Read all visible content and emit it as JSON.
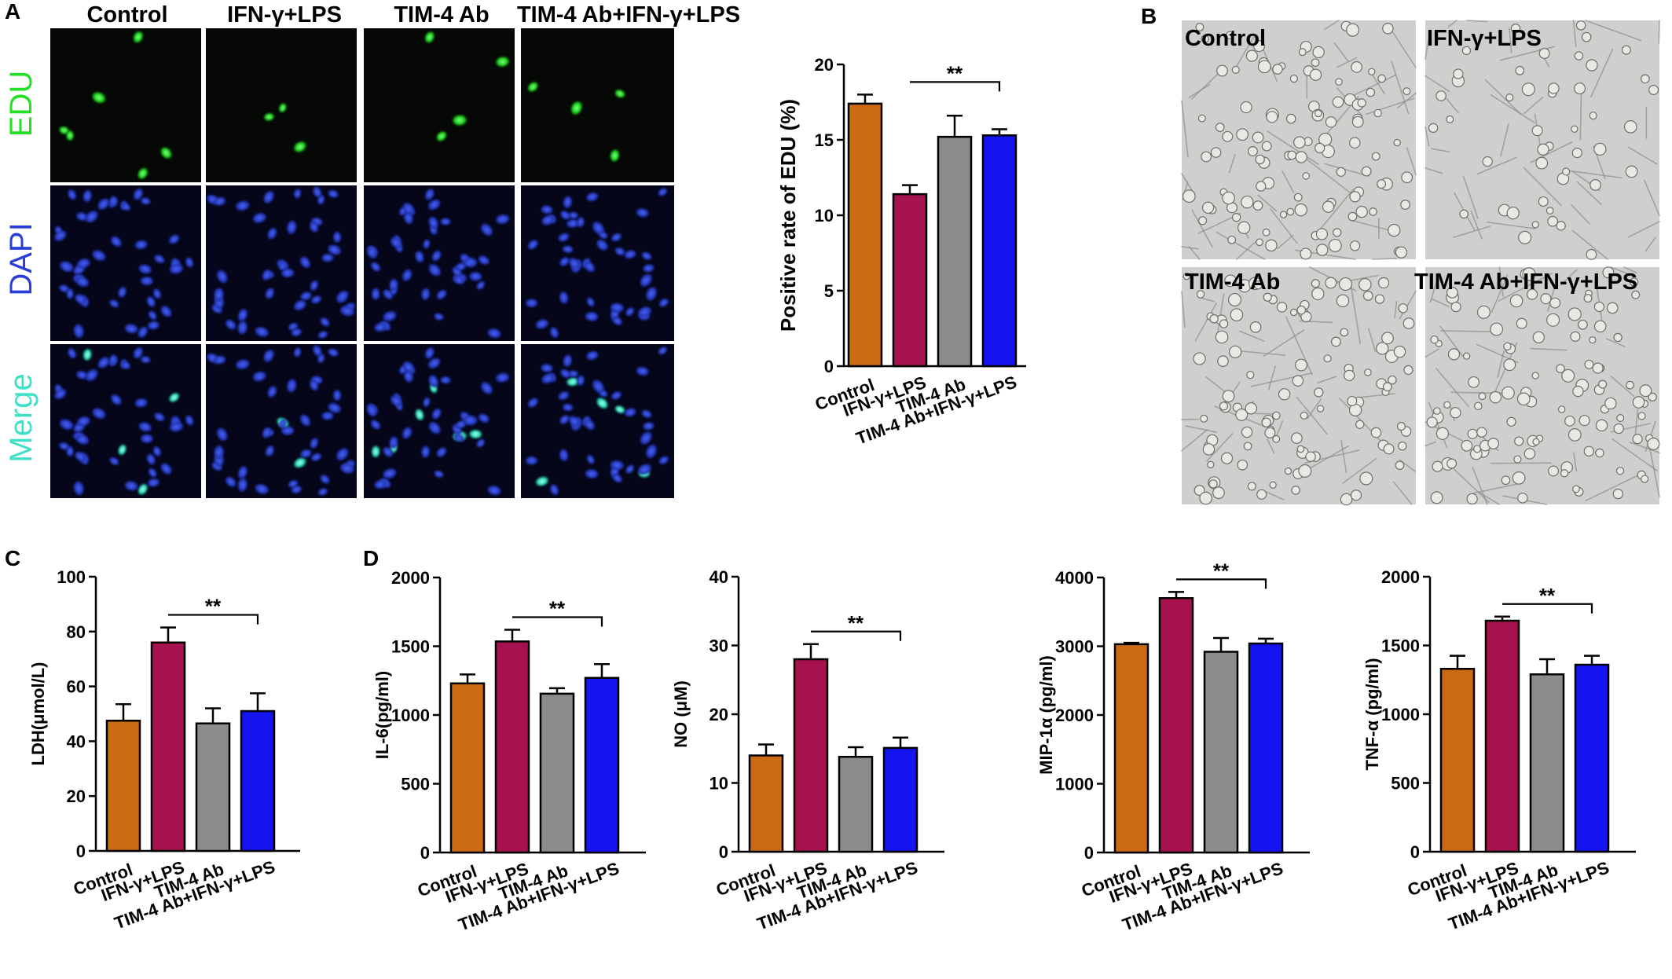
{
  "panels": {
    "a": "A",
    "b": "B",
    "c": "C",
    "d": "D"
  },
  "microscopy": {
    "columns": [
      "Control",
      "IFN-γ+LPS",
      "TIM-4 Ab",
      "TIM-4 Ab+IFN-γ+LPS"
    ],
    "rows": [
      {
        "label": "EDU",
        "color": "#22e022"
      },
      {
        "label": "DAPI",
        "color": "#2a3fd8"
      },
      {
        "label": "Merge",
        "color": "#3fe0c8"
      }
    ]
  },
  "brightfield": {
    "labels": [
      "Control",
      "IFN-γ+LPS",
      "TIM-4 Ab",
      "TIM-4 Ab+IFN-γ+LPS"
    ]
  },
  "colors": {
    "series": [
      "#cc6a14",
      "#a5124e",
      "#8c8c8c",
      "#1414f0"
    ],
    "edu_green": "#22e022",
    "dapi_blue": "#2a3fd8"
  },
  "chart_data": [
    {
      "id": "edu",
      "type": "bar",
      "categories": [
        "Control",
        "IFN-γ+LPS",
        "TIM-4 Ab",
        "TIM-4 Ab+IFN-γ+LPS"
      ],
      "values": [
        17.4,
        11.4,
        15.2,
        15.3
      ],
      "errors": [
        0.6,
        0.6,
        1.4,
        0.4
      ],
      "ylabel": "Positive rate of EDU (%)",
      "ylim": [
        0,
        20
      ],
      "yticks": [
        0,
        5,
        10,
        15,
        20
      ],
      "significance": {
        "from": 1,
        "to": 3,
        "label": "**"
      }
    },
    {
      "id": "ldh",
      "type": "bar",
      "categories": [
        "Control",
        "IFN-γ+LPS",
        "TIM-4 Ab",
        "TIM-4 Ab+IFN-γ+LPS"
      ],
      "values": [
        47.5,
        76,
        46.5,
        51
      ],
      "errors": [
        6,
        5.5,
        5.5,
        6.5
      ],
      "ylabel": "LDH(μmol/L)",
      "ylim": [
        0,
        100
      ],
      "yticks": [
        0,
        20,
        40,
        60,
        80,
        100
      ],
      "significance": {
        "from": 1,
        "to": 3,
        "label": "**"
      }
    },
    {
      "id": "il6",
      "type": "bar",
      "categories": [
        "Control",
        "IFN-γ+LPS",
        "TIM-4 Ab",
        "TIM-4 Ab+IFN-γ+LPS"
      ],
      "values": [
        1230,
        1535,
        1155,
        1270
      ],
      "errors": [
        65,
        85,
        40,
        100
      ],
      "ylabel": "IL-6(pg/ml)",
      "ylim": [
        0,
        2000
      ],
      "yticks": [
        0,
        500,
        1000,
        1500,
        2000
      ],
      "significance": {
        "from": 1,
        "to": 3,
        "label": "**"
      }
    },
    {
      "id": "no",
      "type": "bar",
      "categories": [
        "Control",
        "IFN-γ+LPS",
        "TIM-4 Ab",
        "TIM-4 Ab+IFN-γ+LPS"
      ],
      "values": [
        14,
        28,
        13.8,
        15.1
      ],
      "errors": [
        1.6,
        2.2,
        1.4,
        1.5
      ],
      "ylabel": "NO (μM)",
      "ylim": [
        0,
        40
      ],
      "yticks": [
        0,
        10,
        20,
        30,
        40
      ],
      "significance": {
        "from": 1,
        "to": 3,
        "label": "**"
      }
    },
    {
      "id": "mip1a",
      "type": "bar",
      "categories": [
        "Control",
        "IFN-γ+LPS",
        "TIM-4 Ab",
        "TIM-4 Ab+IFN-γ+LPS"
      ],
      "values": [
        3030,
        3700,
        2920,
        3040
      ],
      "errors": [
        20,
        90,
        200,
        70
      ],
      "ylabel": "MIP-1α (pg/ml)",
      "ylim": [
        0,
        4000
      ],
      "yticks": [
        0,
        1000,
        2000,
        3000,
        4000
      ],
      "significance": {
        "from": 1,
        "to": 3,
        "label": "**"
      }
    },
    {
      "id": "tnfa",
      "type": "bar",
      "categories": [
        "Control",
        "IFN-γ+LPS",
        "TIM-4 Ab",
        "TIM-4 Ab+IFN-γ+LPS"
      ],
      "values": [
        1330,
        1680,
        1290,
        1360
      ],
      "errors": [
        95,
        30,
        110,
        65
      ],
      "ylabel": "TNF-α (pg/ml)",
      "ylim": [
        0,
        2000
      ],
      "yticks": [
        0,
        500,
        1000,
        1500,
        2000
      ],
      "significance": {
        "from": 1,
        "to": 3,
        "label": "**"
      }
    }
  ]
}
